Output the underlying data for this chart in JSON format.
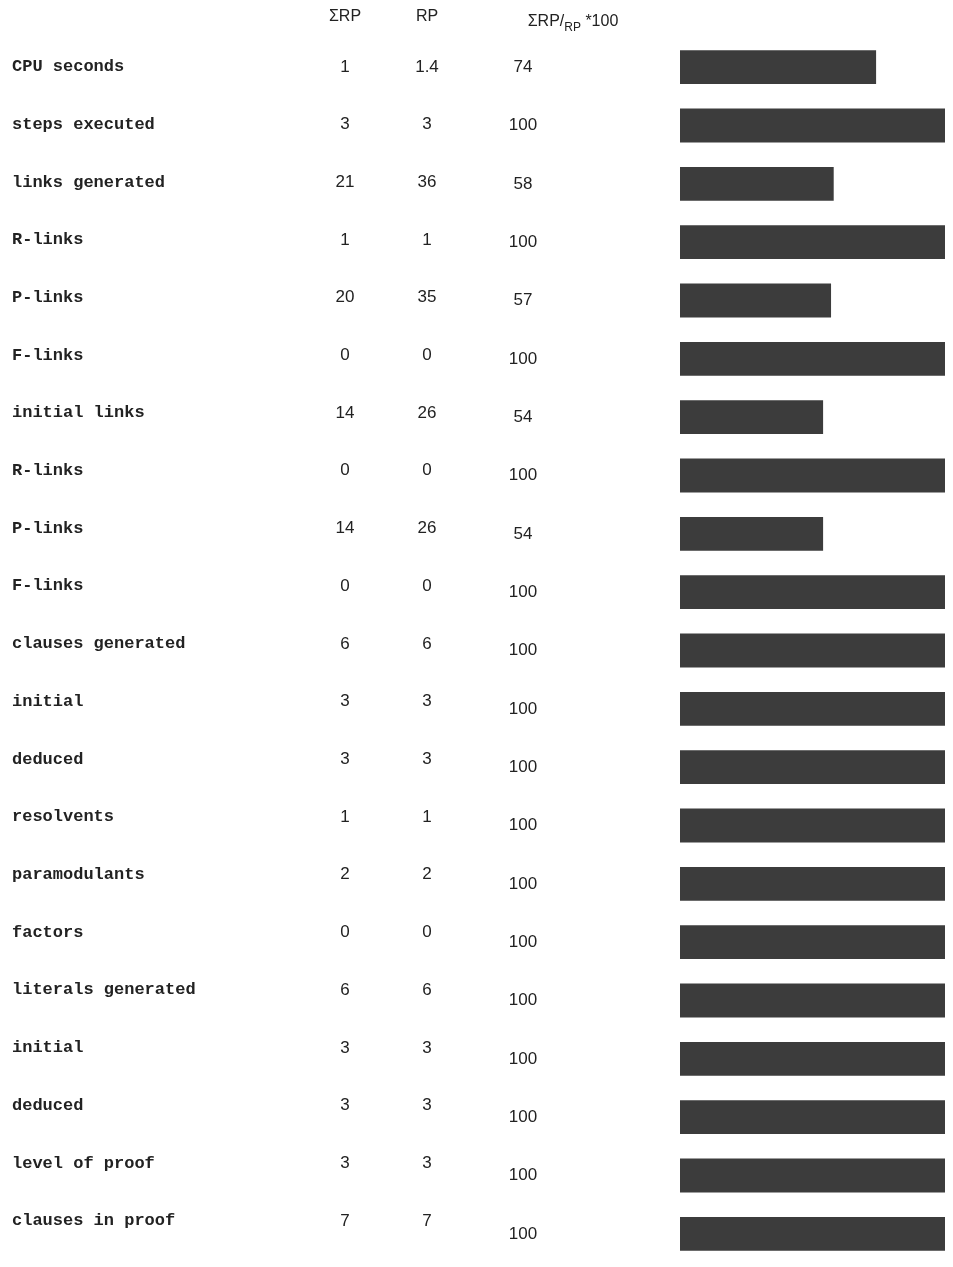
{
  "chart_data": [
    {
      "type": "heatmap",
      "categories": [
        "ΣRP",
        "RP"
      ],
      "y_categories": [
        "CPU seconds",
        "steps executed",
        "links generated",
        "R-links",
        "P-links",
        "F-links",
        "initial links",
        "R-links",
        "P-links",
        "F-links",
        "clauses generated",
        "initial",
        "deduced",
        "resolvents",
        "paramodulants",
        "factors",
        "literals generated",
        "initial",
        "deduced",
        "level of proof",
        "clauses in proof"
      ],
      "cells": [
        [
          1,
          1.4
        ],
        [
          3,
          3
        ],
        [
          21,
          36
        ],
        [
          1,
          1
        ],
        [
          20,
          35
        ],
        [
          0,
          0
        ],
        [
          14,
          26
        ],
        [
          0,
          0
        ],
        [
          14,
          26
        ],
        [
          0,
          0
        ],
        [
          6,
          6
        ],
        [
          3,
          3
        ],
        [
          3,
          3
        ],
        [
          1,
          1
        ],
        [
          2,
          2
        ],
        [
          0,
          0
        ],
        [
          6,
          6
        ],
        [
          3,
          3
        ],
        [
          3,
          3
        ],
        [
          3,
          3
        ],
        [
          7,
          7
        ]
      ],
      "data_labels": true
    },
    {
      "type": "bar",
      "orientation": "horizontal",
      "categories": [
        null,
        null,
        null,
        null,
        null,
        null,
        null,
        null,
        null,
        null,
        null,
        null,
        null,
        null,
        null,
        null,
        null,
        null,
        null,
        null,
        null
      ],
      "series": [
        {
          "name": "ΣRP/$_{RP}$ *100",
          "color": "#3c3c3c",
          "values": [
            74,
            100,
            58,
            100,
            57,
            100,
            54,
            100,
            54,
            100,
            100,
            100,
            100,
            100,
            100,
            100,
            100,
            100,
            100,
            100,
            100
          ]
        }
      ],
      "xlim": [
        0,
        100
      ],
      "tick_labels": false,
      "data_labels": true
    }
  ]
}
